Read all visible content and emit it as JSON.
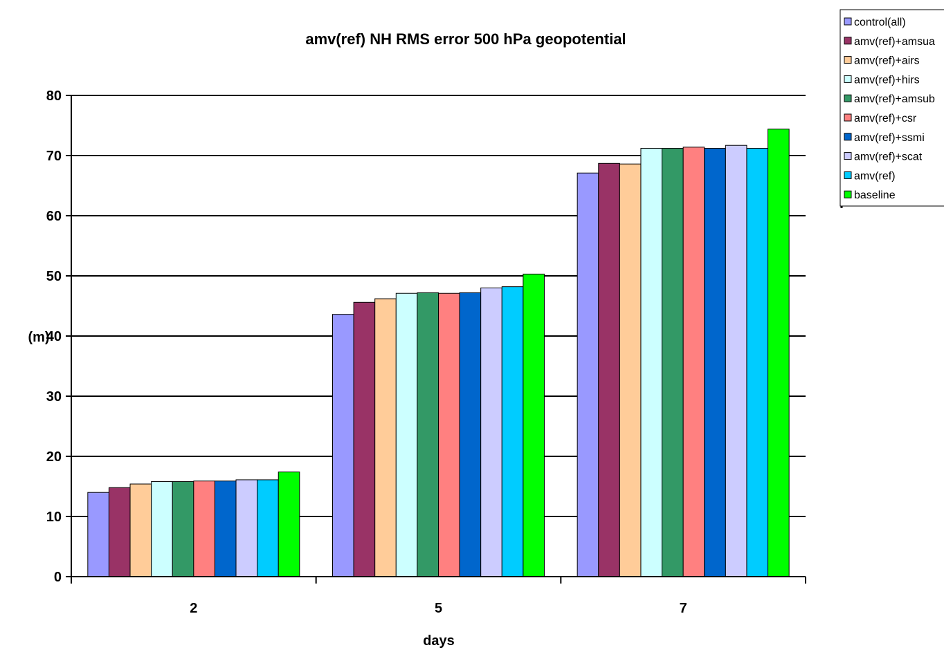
{
  "chart_data": {
    "type": "bar",
    "title": "amv(ref) NH RMS error 500 hPa geopotential",
    "xlabel": "days",
    "ylabel": "(m)",
    "categories": [
      "2",
      "5",
      "7"
    ],
    "ylim": [
      0,
      80
    ],
    "yticks": [
      0,
      10,
      20,
      30,
      40,
      50,
      60,
      70,
      80
    ],
    "grid": true,
    "legend_position": "top-right",
    "series": [
      {
        "name": "control(all)",
        "color": "#9999ff",
        "values": [
          14.0,
          43.6,
          67.1
        ]
      },
      {
        "name": "amv(ref)+amsua",
        "color": "#993366",
        "values": [
          14.8,
          45.6,
          68.7
        ]
      },
      {
        "name": "amv(ref)+airs",
        "color": "#ffcc99",
        "values": [
          15.4,
          46.2,
          68.6
        ]
      },
      {
        "name": "amv(ref)+hirs",
        "color": "#ccffff",
        "values": [
          15.8,
          47.1,
          71.2
        ]
      },
      {
        "name": "amv(ref)+amsub",
        "color": "#339966",
        "values": [
          15.8,
          47.2,
          71.2
        ]
      },
      {
        "name": "amv(ref)+csr",
        "color": "#ff8080",
        "values": [
          15.9,
          47.1,
          71.4
        ]
      },
      {
        "name": "amv(ref)+ssmi",
        "color": "#0066cc",
        "values": [
          15.9,
          47.2,
          71.2
        ]
      },
      {
        "name": "amv(ref)+scat",
        "color": "#ccccff",
        "values": [
          16.1,
          48.0,
          71.7
        ]
      },
      {
        "name": "amv(ref)",
        "color": "#00ccff",
        "values": [
          16.1,
          48.2,
          71.2
        ]
      },
      {
        "name": "baseline",
        "color": "#00ff00",
        "values": [
          17.4,
          50.3,
          74.4
        ]
      }
    ]
  }
}
